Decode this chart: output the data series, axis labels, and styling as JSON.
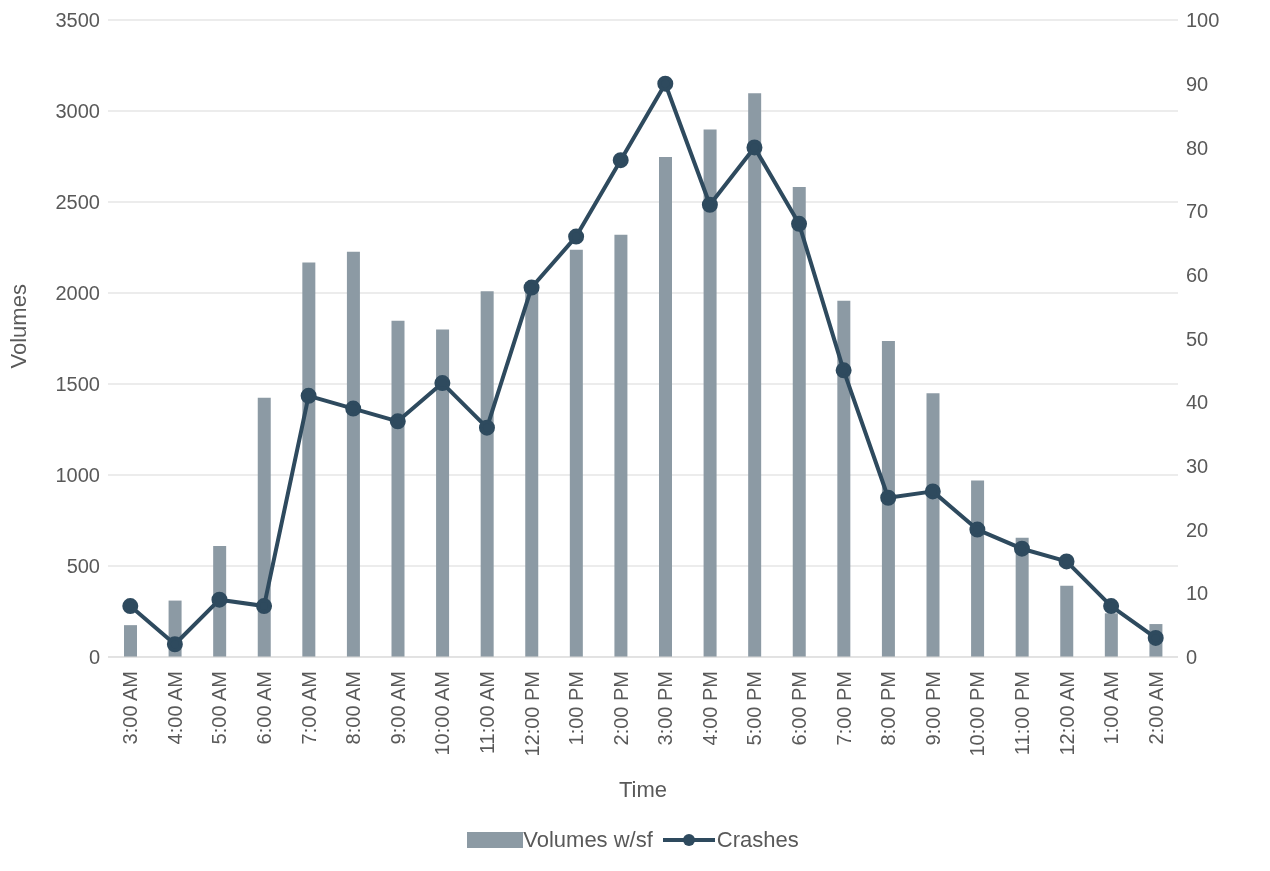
{
  "chart_data": {
    "type": "bar",
    "xlabel": "Time",
    "ylabel": "Volumes",
    "categories": [
      "3:00 AM",
      "4:00 AM",
      "5:00 AM",
      "6:00 AM",
      "7:00 AM",
      "8:00 AM",
      "9:00 AM",
      "10:00 AM",
      "11:00 AM",
      "12:00 PM",
      "1:00 PM",
      "2:00 PM",
      "3:00 PM",
      "4:00 PM",
      "5:00 PM",
      "6:00 PM",
      "7:00 PM",
      "8:00 PM",
      "9:00 PM",
      "10:00 PM",
      "11:00 PM",
      "12:00 AM",
      "1:00 AM",
      "2:00 AM"
    ],
    "series": [
      {
        "name": "Volumes w/sf",
        "color": "#8c9aa4",
        "values": [
          175,
          310,
          610,
          1425,
          2168,
          2227,
          1847,
          1800,
          2010,
          2060,
          2238,
          2320,
          2747,
          2899,
          3098,
          2583,
          1958,
          1736,
          1449,
          970,
          655,
          392,
          240,
          181
        ]
      },
      {
        "name": "Crashes",
        "type": "line",
        "axis": "y2",
        "color": "#2e4a5e",
        "marker": "circle",
        "values": [
          8,
          2,
          9,
          8,
          41,
          39,
          37,
          43,
          36,
          58,
          66,
          78,
          90,
          71,
          80,
          68,
          45,
          25,
          26,
          20,
          17,
          15,
          8,
          3
        ]
      }
    ],
    "ylim": [
      0,
      3500
    ],
    "yticks": [
      0,
      500,
      1000,
      1500,
      2000,
      2500,
      3000,
      3500
    ],
    "y2lim": [
      0,
      100
    ],
    "y2ticks": [
      0,
      10,
      20,
      30,
      40,
      50,
      60,
      70,
      80,
      90,
      100
    ],
    "grid": "y",
    "legend": "bottom"
  }
}
